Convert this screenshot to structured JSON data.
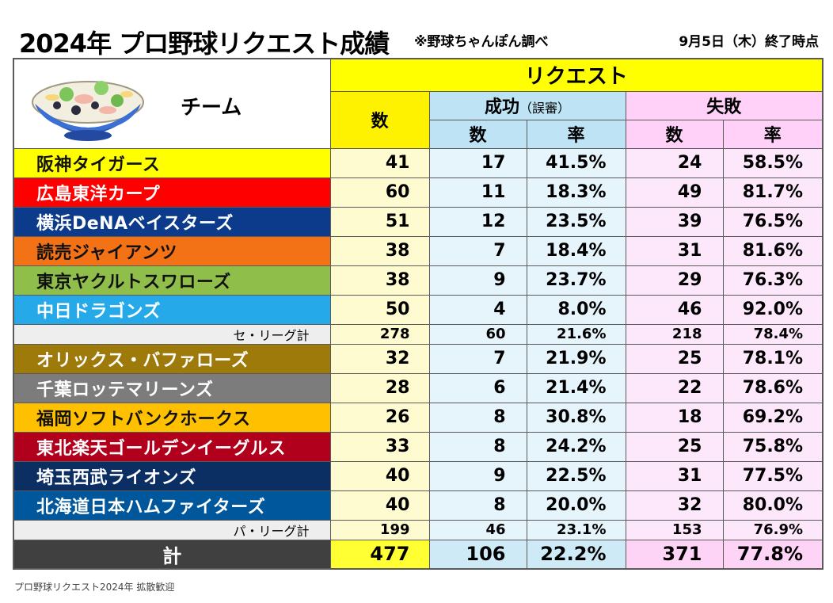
{
  "header": {
    "title": "2024年 プロ野球リクエスト成績",
    "note": "※野球ちゃんぽん調べ",
    "date": "9月5日（木）終了時点"
  },
  "columns": {
    "team": "チーム",
    "request": "リクエスト",
    "count": "数",
    "success": "成功",
    "success_sub": "（誤審）",
    "failure": "失敗",
    "num": "数",
    "rate": "率"
  },
  "central": [
    {
      "team": "阪神タイガース",
      "color": "#ffff00",
      "dark": true,
      "total": "41",
      "succ": "17",
      "succ_rate": "41.5%",
      "fail": "24",
      "fail_rate": "58.5%"
    },
    {
      "team": "広島東洋カープ",
      "color": "#ff0000",
      "dark": false,
      "total": "60",
      "succ": "11",
      "succ_rate": "18.3%",
      "fail": "49",
      "fail_rate": "81.7%"
    },
    {
      "team": "横浜DeNAベイスターズ",
      "color": "#0c3b8c",
      "dark": false,
      "total": "51",
      "succ": "12",
      "succ_rate": "23.5%",
      "fail": "39",
      "fail_rate": "76.5%"
    },
    {
      "team": "読売ジャイアンツ",
      "color": "#f47216",
      "dark": true,
      "total": "38",
      "succ": "7",
      "succ_rate": "18.4%",
      "fail": "31",
      "fail_rate": "81.6%"
    },
    {
      "team": "東京ヤクルトスワローズ",
      "color": "#8fbe4b",
      "dark": true,
      "total": "38",
      "succ": "9",
      "succ_rate": "23.7%",
      "fail": "29",
      "fail_rate": "76.3%"
    },
    {
      "team": "中日ドラゴンズ",
      "color": "#25a9e8",
      "dark": false,
      "total": "50",
      "succ": "4",
      "succ_rate": "8.0%",
      "fail": "46",
      "fail_rate": "92.0%"
    }
  ],
  "central_total": {
    "label": "セ・リーグ計",
    "total": "278",
    "succ": "60",
    "succ_rate": "21.6%",
    "fail": "218",
    "fail_rate": "78.4%"
  },
  "pacific": [
    {
      "team": "オリックス・バファローズ",
      "color": "#9e7a0b",
      "dark": false,
      "total": "32",
      "succ": "7",
      "succ_rate": "21.9%",
      "fail": "25",
      "fail_rate": "78.1%"
    },
    {
      "team": "千葉ロッテマリーンズ",
      "color": "#7c7c7c",
      "dark": false,
      "total": "28",
      "succ": "6",
      "succ_rate": "21.4%",
      "fail": "22",
      "fail_rate": "78.6%"
    },
    {
      "team": "福岡ソフトバンクホークス",
      "color": "#ffc000",
      "dark": true,
      "total": "26",
      "succ": "8",
      "succ_rate": "30.8%",
      "fail": "18",
      "fail_rate": "69.2%"
    },
    {
      "team": "東北楽天ゴールデンイーグルス",
      "color": "#b0001c",
      "dark": false,
      "total": "33",
      "succ": "8",
      "succ_rate": "24.2%",
      "fail": "25",
      "fail_rate": "75.8%"
    },
    {
      "team": "埼玉西武ライオンズ",
      "color": "#0c2f63",
      "dark": false,
      "total": "40",
      "succ": "9",
      "succ_rate": "22.5%",
      "fail": "31",
      "fail_rate": "77.5%"
    },
    {
      "team": "北海道日本ハムファイターズ",
      "color": "#01579b",
      "dark": false,
      "total": "40",
      "succ": "8",
      "succ_rate": "20.0%",
      "fail": "32",
      "fail_rate": "80.0%"
    }
  ],
  "pacific_total": {
    "label": "パ・リーグ計",
    "total": "199",
    "succ": "46",
    "succ_rate": "23.1%",
    "fail": "153",
    "fail_rate": "76.9%"
  },
  "grand_total": {
    "label": "計",
    "total": "477",
    "succ": "106",
    "succ_rate": "22.2%",
    "fail": "371",
    "fail_rate": "77.8%"
  },
  "footer": "プロ野球リクエスト2024年 拡散歓迎"
}
